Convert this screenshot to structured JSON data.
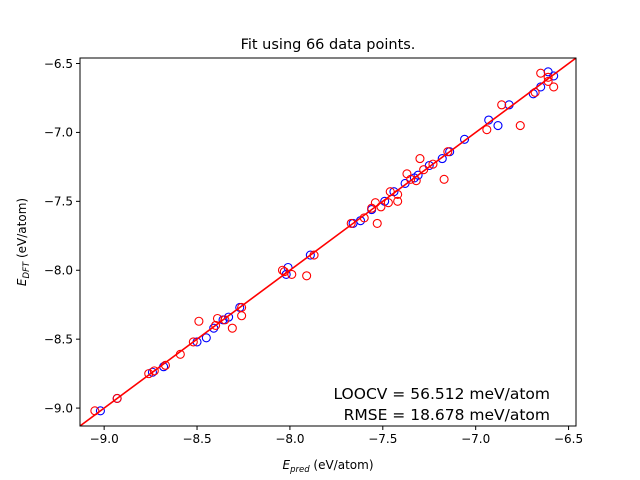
{
  "chart_data": {
    "type": "scatter",
    "title": "Fit using 66 data points.",
    "xlabel_main": "E",
    "xlabel_sub": "pred",
    "xlabel_unit": " (eV/atom)",
    "ylabel_main": "E",
    "ylabel_sub": "DFT",
    "ylabel_unit": " (eV/atom)",
    "xlim": [
      -9.13,
      -6.46
    ],
    "ylim": [
      -9.13,
      -6.46
    ],
    "xticks": [
      -9.0,
      -8.5,
      -8.0,
      -7.5,
      -7.0,
      -6.5
    ],
    "xtick_labels": [
      "−9.0",
      "−8.5",
      "−8.0",
      "−7.5",
      "−7.0",
      "−6.5"
    ],
    "yticks": [
      -9.0,
      -8.5,
      -8.0,
      -7.5,
      -7.0,
      -6.5
    ],
    "ytick_labels": [
      "−9.0",
      "−8.5",
      "−8.0",
      "−7.5",
      "−7.0",
      "−6.5"
    ],
    "grid": false,
    "annotations": [
      "LOOCV = 56.512 meV/atom",
      "RMSE = 18.678 meV/atom"
    ],
    "fit_line": {
      "x": [
        -9.13,
        -6.46
      ],
      "y": [
        -9.13,
        -6.46
      ],
      "color": "#ff0000"
    },
    "series": [
      {
        "color": "#0000ff",
        "marker": "open-circle",
        "points": [
          [
            -9.02,
            -9.02
          ],
          [
            -8.93,
            -8.93
          ],
          [
            -8.74,
            -8.74
          ],
          [
            -8.68,
            -8.7
          ],
          [
            -8.5,
            -8.52
          ],
          [
            -8.45,
            -8.49
          ],
          [
            -8.41,
            -8.42
          ],
          [
            -8.36,
            -8.36
          ],
          [
            -8.33,
            -8.34
          ],
          [
            -8.27,
            -8.27
          ],
          [
            -8.02,
            -8.03
          ],
          [
            -8.01,
            -7.98
          ],
          [
            -7.89,
            -7.89
          ],
          [
            -7.66,
            -7.66
          ],
          [
            -7.62,
            -7.64
          ],
          [
            -7.56,
            -7.56
          ],
          [
            -7.49,
            -7.5
          ],
          [
            -7.44,
            -7.43
          ],
          [
            -7.38,
            -7.37
          ],
          [
            -7.33,
            -7.33
          ],
          [
            -7.31,
            -7.31
          ],
          [
            -7.25,
            -7.24
          ],
          [
            -7.18,
            -7.19
          ],
          [
            -7.14,
            -7.14
          ],
          [
            -7.06,
            -7.05
          ],
          [
            -6.93,
            -6.91
          ],
          [
            -6.88,
            -6.95
          ],
          [
            -6.82,
            -6.8
          ],
          [
            -6.69,
            -6.72
          ],
          [
            -6.65,
            -6.67
          ],
          [
            -6.61,
            -6.56
          ],
          [
            -6.58,
            -6.59
          ]
        ]
      },
      {
        "color": "#ff0000",
        "marker": "open-circle",
        "points": [
          [
            -9.05,
            -9.02
          ],
          [
            -8.93,
            -8.93
          ],
          [
            -8.76,
            -8.75
          ],
          [
            -8.73,
            -8.73
          ],
          [
            -8.67,
            -8.69
          ],
          [
            -8.59,
            -8.61
          ],
          [
            -8.52,
            -8.52
          ],
          [
            -8.49,
            -8.37
          ],
          [
            -8.4,
            -8.4
          ],
          [
            -8.39,
            -8.35
          ],
          [
            -8.35,
            -8.36
          ],
          [
            -8.31,
            -8.42
          ],
          [
            -8.26,
            -8.33
          ],
          [
            -8.26,
            -8.27
          ],
          [
            -8.04,
            -8.0
          ],
          [
            -8.03,
            -8.01
          ],
          [
            -7.99,
            -8.03
          ],
          [
            -7.91,
            -8.04
          ],
          [
            -7.87,
            -7.89
          ],
          [
            -7.67,
            -7.66
          ],
          [
            -7.6,
            -7.62
          ],
          [
            -7.56,
            -7.55
          ],
          [
            -7.54,
            -7.51
          ],
          [
            -7.53,
            -7.66
          ],
          [
            -7.51,
            -7.54
          ],
          [
            -7.47,
            -7.51
          ],
          [
            -7.46,
            -7.43
          ],
          [
            -7.42,
            -7.45
          ],
          [
            -7.42,
            -7.5
          ],
          [
            -7.37,
            -7.3
          ],
          [
            -7.35,
            -7.34
          ],
          [
            -7.32,
            -7.35
          ],
          [
            -7.3,
            -7.19
          ],
          [
            -7.28,
            -7.27
          ],
          [
            -7.23,
            -7.23
          ],
          [
            -7.17,
            -7.34
          ],
          [
            -7.15,
            -7.14
          ],
          [
            -6.94,
            -6.98
          ],
          [
            -6.86,
            -6.8
          ],
          [
            -6.76,
            -6.95
          ],
          [
            -6.68,
            -6.71
          ],
          [
            -6.65,
            -6.57
          ],
          [
            -6.61,
            -6.6
          ],
          [
            -6.61,
            -6.63
          ],
          [
            -6.58,
            -6.67
          ]
        ]
      }
    ]
  }
}
